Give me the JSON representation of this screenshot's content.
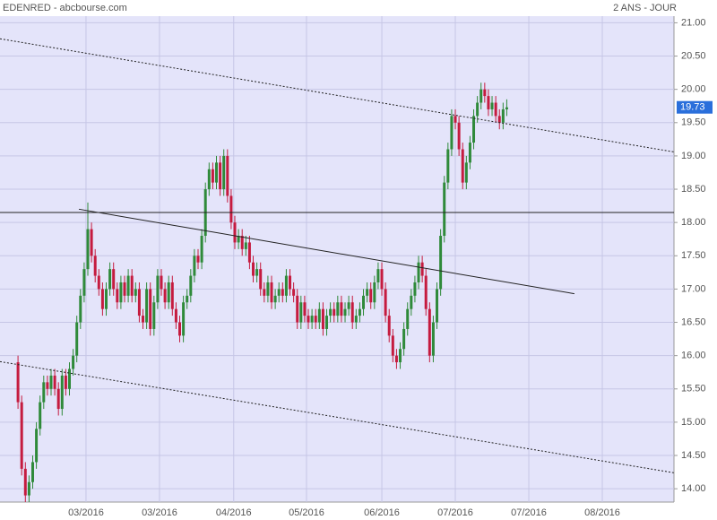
{
  "chart_data": {
    "type": "candlestick",
    "title": "EDENRED - abcbourse.com",
    "subtitle": "2 ANS - JOUR",
    "categories": [
      null,
      null,
      null,
      null,
      null,
      null,
      null,
      null,
      null,
      null,
      null,
      null,
      null,
      null,
      null,
      null,
      null,
      null,
      null,
      null,
      null,
      null,
      null,
      null,
      null,
      null,
      null,
      null,
      null,
      null,
      null,
      null,
      null,
      null,
      null,
      null,
      null,
      null,
      null,
      null,
      null,
      null,
      null,
      null,
      null,
      null,
      null,
      null,
      null,
      null,
      null,
      null,
      null,
      null,
      null,
      null,
      null,
      null,
      null,
      null,
      null,
      null,
      null,
      null,
      null,
      null,
      null,
      null,
      null,
      null,
      null,
      null,
      null,
      null,
      null,
      null,
      null,
      null,
      null,
      null,
      null,
      null,
      null,
      null,
      null,
      null,
      null,
      null,
      null,
      null,
      null,
      null,
      null,
      null,
      null,
      null,
      null,
      null,
      null,
      null,
      null,
      null,
      null,
      null,
      null,
      null,
      null,
      null,
      null,
      null,
      null,
      null,
      null,
      null,
      null,
      null,
      null,
      null,
      null,
      null,
      null,
      null,
      null,
      null,
      null,
      null,
      null,
      null,
      null,
      null,
      null,
      null,
      null,
      null
    ],
    "open": [
      15.9,
      15.3,
      14.3,
      13.9,
      14.1,
      14.4,
      14.9,
      15.3,
      15.6,
      15.5,
      15.7,
      15.5,
      15.2,
      15.7,
      15.5,
      15.8,
      16.0,
      16.5,
      16.9,
      17.3,
      17.9,
      17.5,
      17.2,
      17.0,
      16.7,
      17.0,
      17.3,
      17.0,
      16.8,
      17.1,
      16.9,
      17.2,
      16.9,
      17.0,
      16.6,
      16.5,
      17.0,
      16.4,
      16.8,
      17.2,
      17.0,
      16.8,
      17.1,
      16.7,
      16.5,
      16.3,
      16.8,
      16.9,
      17.2,
      17.5,
      17.4,
      17.8,
      18.5,
      18.8,
      18.6,
      18.9,
      18.5,
      19.0,
      18.4,
      18.0,
      17.7,
      17.8,
      17.6,
      17.7,
      17.4,
      17.2,
      17.3,
      17.0,
      16.9,
      17.1,
      16.8,
      16.9,
      17.0,
      16.9,
      17.2,
      17.0,
      16.9,
      16.5,
      16.8,
      16.6,
      16.5,
      16.6,
      16.5,
      16.7,
      16.4,
      16.6,
      16.7,
      16.6,
      16.8,
      16.6,
      16.7,
      16.8,
      16.5,
      16.6,
      16.7,
      16.9,
      17.0,
      16.8,
      17.1,
      17.3,
      17.0,
      16.6,
      16.3,
      16.0,
      15.9,
      16.1,
      16.4,
      16.7,
      16.9,
      17.1,
      17.4,
      17.2,
      16.7,
      16.0,
      16.5,
      17.0,
      17.8,
      18.6,
      19.1,
      19.6,
      19.5,
      19.1,
      18.6,
      18.9,
      19.2,
      19.6,
      19.8,
      20.0,
      19.9,
      19.7,
      19.8,
      19.6,
      19.5,
      19.7
    ],
    "high": [
      16.0,
      15.4,
      14.4,
      14.2,
      14.5,
      15.0,
      15.4,
      15.7,
      15.7,
      15.8,
      15.8,
      15.6,
      15.8,
      15.8,
      15.9,
      16.1,
      16.6,
      17.0,
      17.4,
      18.3,
      18.0,
      17.6,
      17.3,
      17.1,
      17.1,
      17.4,
      17.4,
      17.1,
      17.2,
      17.2,
      17.3,
      17.3,
      17.1,
      17.1,
      16.7,
      17.1,
      17.1,
      16.9,
      17.3,
      17.3,
      17.1,
      17.2,
      17.2,
      16.8,
      16.6,
      16.9,
      17.0,
      17.3,
      17.6,
      17.6,
      17.9,
      18.6,
      18.9,
      18.9,
      19.0,
      19.0,
      19.1,
      19.1,
      18.5,
      18.1,
      17.9,
      17.9,
      17.8,
      17.8,
      17.5,
      17.4,
      17.4,
      17.1,
      17.2,
      17.2,
      17.0,
      17.1,
      17.1,
      17.3,
      17.3,
      17.1,
      17.0,
      16.9,
      16.9,
      16.7,
      16.7,
      16.7,
      16.8,
      16.8,
      16.7,
      16.8,
      16.8,
      16.9,
      16.9,
      16.8,
      16.9,
      16.9,
      16.7,
      16.8,
      17.0,
      17.1,
      17.1,
      17.2,
      17.4,
      17.4,
      17.1,
      16.7,
      16.4,
      16.1,
      16.2,
      16.5,
      16.8,
      17.0,
      17.2,
      17.5,
      17.5,
      17.3,
      16.8,
      16.6,
      17.1,
      17.9,
      18.7,
      19.2,
      19.7,
      19.7,
      19.6,
      19.2,
      19.0,
      19.3,
      19.7,
      19.9,
      20.1,
      20.1,
      20.0,
      19.9,
      19.9,
      19.7,
      19.8,
      19.85
    ],
    "low": [
      15.2,
      14.2,
      13.8,
      13.8,
      14.0,
      14.3,
      14.8,
      15.2,
      15.4,
      15.4,
      15.4,
      15.1,
      15.1,
      15.4,
      15.4,
      15.7,
      15.9,
      16.4,
      16.8,
      17.2,
      17.4,
      17.1,
      16.9,
      16.6,
      16.6,
      16.9,
      16.9,
      16.7,
      16.7,
      16.8,
      16.8,
      16.8,
      16.8,
      16.5,
      16.4,
      16.4,
      16.3,
      16.3,
      16.7,
      16.9,
      16.7,
      16.7,
      16.6,
      16.4,
      16.2,
      16.2,
      16.7,
      16.8,
      17.1,
      17.3,
      17.3,
      17.7,
      18.4,
      18.5,
      18.5,
      18.4,
      18.4,
      18.3,
      17.9,
      17.6,
      17.6,
      17.5,
      17.5,
      17.3,
      17.1,
      17.1,
      16.9,
      16.8,
      16.8,
      16.7,
      16.7,
      16.8,
      16.8,
      16.8,
      16.9,
      16.8,
      16.4,
      16.4,
      16.5,
      16.4,
      16.4,
      16.4,
      16.4,
      16.3,
      16.3,
      16.5,
      16.5,
      16.5,
      16.5,
      16.5,
      16.6,
      16.4,
      16.4,
      16.5,
      16.6,
      16.8,
      16.7,
      16.7,
      17.0,
      16.9,
      16.5,
      16.2,
      15.9,
      15.8,
      15.8,
      16.0,
      16.3,
      16.6,
      16.8,
      17.0,
      17.1,
      16.6,
      15.9,
      15.9,
      16.4,
      16.9,
      17.7,
      18.5,
      19.0,
      19.4,
      19.0,
      18.5,
      18.5,
      18.8,
      19.1,
      19.5,
      19.7,
      19.8,
      19.6,
      19.6,
      19.5,
      19.4,
      19.4,
      19.6
    ],
    "close": [
      15.3,
      14.3,
      13.9,
      14.1,
      14.4,
      14.9,
      15.3,
      15.6,
      15.5,
      15.7,
      15.5,
      15.2,
      15.7,
      15.5,
      15.8,
      16.0,
      16.5,
      16.9,
      17.3,
      17.9,
      17.5,
      17.2,
      17.0,
      16.7,
      17.0,
      17.3,
      17.0,
      16.8,
      17.1,
      16.9,
      17.2,
      16.9,
      17.0,
      16.6,
      16.5,
      17.0,
      16.4,
      16.8,
      17.2,
      17.0,
      16.8,
      17.1,
      16.7,
      16.5,
      16.3,
      16.8,
      16.9,
      17.2,
      17.5,
      17.4,
      17.8,
      18.5,
      18.8,
      18.6,
      18.9,
      18.5,
      19.0,
      18.4,
      18.0,
      17.7,
      17.8,
      17.6,
      17.7,
      17.4,
      17.2,
      17.3,
      17.0,
      16.9,
      17.1,
      16.8,
      16.9,
      17.0,
      16.9,
      17.2,
      17.0,
      16.9,
      16.5,
      16.8,
      16.6,
      16.5,
      16.6,
      16.5,
      16.7,
      16.4,
      16.6,
      16.7,
      16.6,
      16.8,
      16.6,
      16.7,
      16.8,
      16.5,
      16.6,
      16.7,
      16.9,
      17.0,
      16.8,
      17.1,
      17.3,
      17.0,
      16.6,
      16.3,
      16.0,
      15.9,
      16.1,
      16.4,
      16.7,
      16.9,
      17.1,
      17.4,
      17.2,
      16.7,
      16.0,
      16.5,
      17.0,
      17.8,
      18.6,
      19.1,
      19.6,
      19.5,
      19.1,
      18.6,
      18.9,
      19.2,
      19.6,
      19.8,
      20.0,
      19.9,
      19.7,
      19.8,
      19.6,
      19.5,
      19.7,
      19.73
    ],
    "up_color": "#2f8a3a",
    "down_color": "#c51b3f",
    "last_price": 19.73,
    "last_price_color": "#2a6fdb",
    "xlim": [
      -4.9,
      178.5
    ],
    "xticks": [
      {
        "value": 18.5,
        "label": "03/2016"
      },
      {
        "value": 38.5,
        "label": "03/2016"
      },
      {
        "value": 58.7,
        "label": "04/2016"
      },
      {
        "value": 78.5,
        "label": "05/2016"
      },
      {
        "value": 99,
        "label": "06/2016"
      },
      {
        "value": 119,
        "label": "07/2016"
      },
      {
        "value": 139,
        "label": "07/2016"
      },
      {
        "value": 159,
        "label": "08/2016"
      }
    ],
    "ylim": [
      13.8,
      21.1
    ],
    "yticks": [
      {
        "value": 14,
        "label": "14.00"
      },
      {
        "value": 14.5,
        "label": "14.50"
      },
      {
        "value": 15,
        "label": "15.00"
      },
      {
        "value": 15.5,
        "label": "15.50"
      },
      {
        "value": 16,
        "label": "16.00"
      },
      {
        "value": 16.5,
        "label": "16.50"
      },
      {
        "value": 17,
        "label": "17.00"
      },
      {
        "value": 17.5,
        "label": "17.50"
      },
      {
        "value": 18,
        "label": "18.00"
      },
      {
        "value": 18.5,
        "label": "18.50"
      },
      {
        "value": 19,
        "label": "19.00"
      },
      {
        "value": 19.5,
        "label": "19.50"
      },
      {
        "value": 20,
        "label": "20.00"
      },
      {
        "value": 20.5,
        "label": "20.50"
      },
      {
        "value": 21,
        "label": "21.00"
      }
    ],
    "grid": true,
    "lines": [
      {
        "x": [
          -4.9,
          178.5
        ],
        "y": [
          20.76,
          19.06
        ],
        "dashed": true
      },
      {
        "x": [
          -4.9,
          178.5
        ],
        "y": [
          15.91,
          14.24
        ],
        "dashed": true
      },
      {
        "x": [
          16.56,
          151.4
        ],
        "y": [
          18.2,
          16.93
        ],
        "dashed": false
      },
      {
        "x": [
          -4.9,
          178.5
        ],
        "y": [
          18.15,
          18.15
        ],
        "dashed": false
      }
    ]
  }
}
